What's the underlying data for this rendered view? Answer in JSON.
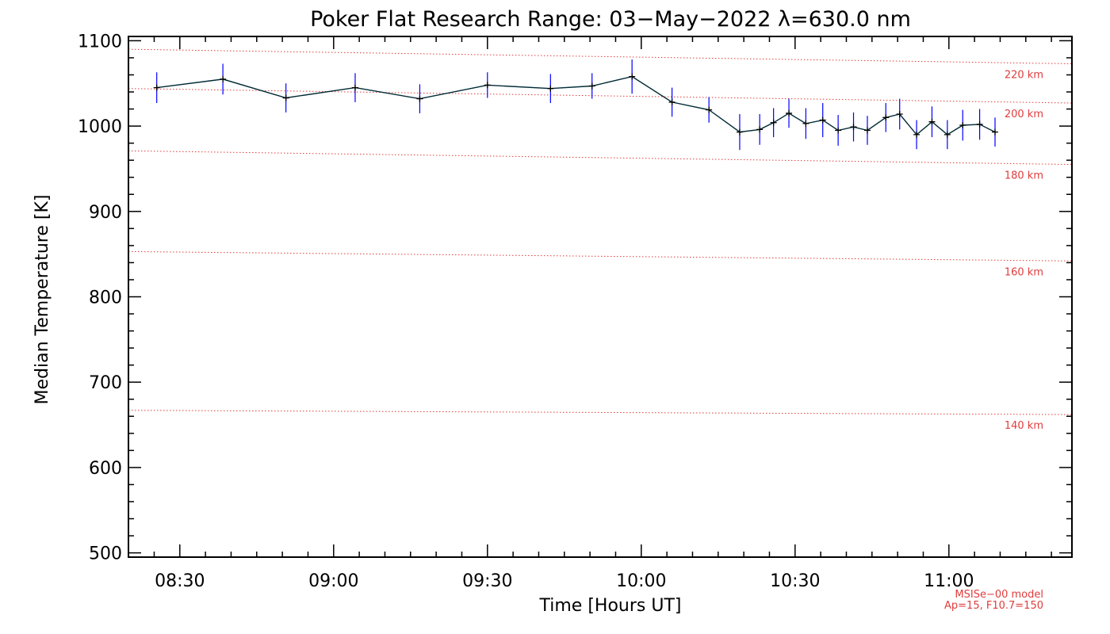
{
  "chart_data": {
    "type": "line",
    "title": "Poker Flat Research Range: 03−May−2022 λ=630.0 nm",
    "xlabel": "Time [Hours UT]",
    "ylabel": "Median Temperature [K]",
    "xlim": [
      8.333,
      11.4
    ],
    "ylim": [
      495,
      1105
    ],
    "x_ticks": [
      {
        "label": "08:30",
        "value": 8.5
      },
      {
        "label": "09:00",
        "value": 9.0
      },
      {
        "label": "09:30",
        "value": 9.5
      },
      {
        "label": "10:00",
        "value": 10.0
      },
      {
        "label": "10:30",
        "value": 10.5
      },
      {
        "label": "11:00",
        "value": 11.0
      }
    ],
    "y_ticks": [
      {
        "label": "500",
        "value": 500
      },
      {
        "label": "600",
        "value": 600
      },
      {
        "label": "700",
        "value": 700
      },
      {
        "label": "800",
        "value": 800
      },
      {
        "label": "900",
        "value": 900
      },
      {
        "label": "1000",
        "value": 1000
      },
      {
        "label": "1100",
        "value": 1100
      }
    ],
    "series": [
      {
        "color": "#002b36",
        "error_color": "#0000ff",
        "points": [
          {
            "x": 8.425,
            "y": 1045,
            "err": 18
          },
          {
            "x": 8.64,
            "y": 1055,
            "err": 18
          },
          {
            "x": 8.845,
            "y": 1033,
            "err": 17
          },
          {
            "x": 9.07,
            "y": 1045,
            "err": 17
          },
          {
            "x": 9.28,
            "y": 1032,
            "err": 17
          },
          {
            "x": 9.5,
            "y": 1048,
            "err": 15
          },
          {
            "x": 9.705,
            "y": 1044,
            "err": 17
          },
          {
            "x": 9.84,
            "y": 1047,
            "err": 15
          },
          {
            "x": 9.97,
            "y": 1058,
            "err": 20
          },
          {
            "x": 10.1,
            "y": 1028,
            "err": 17
          },
          {
            "x": 10.22,
            "y": 1019,
            "err": 15
          },
          {
            "x": 10.32,
            "y": 993,
            "err": 21
          },
          {
            "x": 10.385,
            "y": 996,
            "err": 18
          },
          {
            "x": 10.43,
            "y": 1004,
            "err": 17
          },
          {
            "x": 10.48,
            "y": 1015,
            "err": 17
          },
          {
            "x": 10.535,
            "y": 1003,
            "err": 18
          },
          {
            "x": 10.59,
            "y": 1007,
            "err": 20
          },
          {
            "x": 10.64,
            "y": 995,
            "err": 18
          },
          {
            "x": 10.69,
            "y": 999,
            "err": 17
          },
          {
            "x": 10.735,
            "y": 995,
            "err": 17
          },
          {
            "x": 10.795,
            "y": 1010,
            "err": 17
          },
          {
            "x": 10.84,
            "y": 1014,
            "err": 18
          },
          {
            "x": 10.895,
            "y": 990,
            "err": 17
          },
          {
            "x": 10.945,
            "y": 1005,
            "err": 18
          },
          {
            "x": 10.995,
            "y": 990,
            "err": 17
          },
          {
            "x": 11.045,
            "y": 1001,
            "err": 18
          },
          {
            "x": 11.1,
            "y": 1002,
            "err": 18
          },
          {
            "x": 11.15,
            "y": 993,
            "err": 17
          }
        ]
      }
    ],
    "reference_lines": [
      {
        "label": "140 km",
        "y_start": 667,
        "y_end": 662,
        "color": "#e03c3c"
      },
      {
        "label": "160 km",
        "y_start": 853,
        "y_end": 842,
        "color": "#e03c3c"
      },
      {
        "label": "180 km",
        "y_start": 971,
        "y_end": 955,
        "color": "#e03c3c"
      },
      {
        "label": "200 km",
        "y_start": 1044,
        "y_end": 1027,
        "color": "#e03c3c"
      },
      {
        "label": "220 km",
        "y_start": 1090,
        "y_end": 1073,
        "color": "#e03c3c"
      }
    ],
    "annotations": [
      "MSISe−00 model",
      "Ap=15, F10.7=150"
    ]
  }
}
